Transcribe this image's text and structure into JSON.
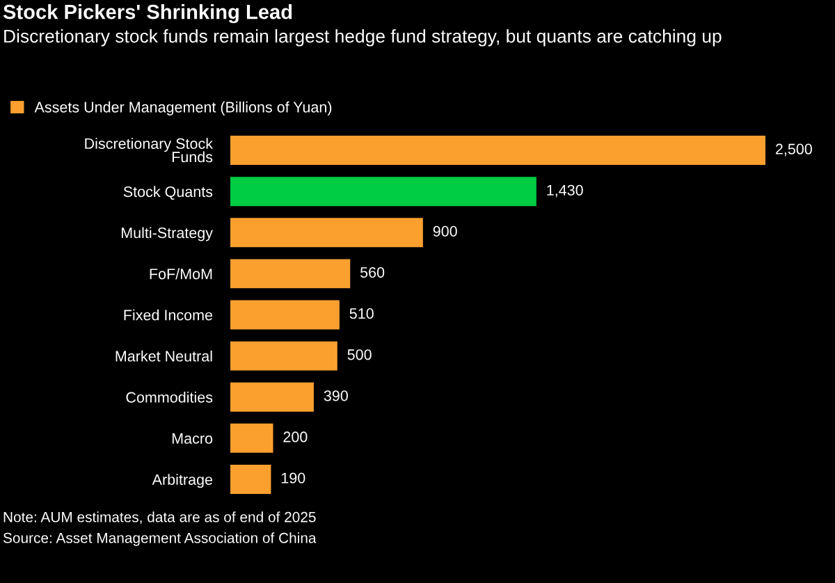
{
  "chart_data": {
    "type": "bar",
    "orientation": "horizontal",
    "title": "Stock Pickers' Shrinking Lead",
    "subtitle": "Discretionary stock funds remain largest hedge fund strategy, but quants are catching up",
    "categories": [
      "Discretionary Stock\nFunds",
      "Stock Quants",
      "Multi-Strategy",
      "FoF/MoM",
      "Fixed Income",
      "Market Neutral",
      "Commodities",
      "Macro",
      "Arbitrage"
    ],
    "series": [
      {
        "name": "Assets Under Management (Billions of Yuan)",
        "color": "#fba02f",
        "values": [
          2500,
          1430,
          900,
          560,
          510,
          500,
          390,
          200,
          190
        ],
        "colors": [
          "#fba02f",
          "#00cc44",
          "#fba02f",
          "#fba02f",
          "#fba02f",
          "#fba02f",
          "#fba02f",
          "#fba02f",
          "#fba02f"
        ],
        "value_labels": [
          "2,500",
          "1,430",
          "900",
          "560",
          "510",
          "500",
          "390",
          "200",
          "190"
        ]
      }
    ],
    "legend": "top left",
    "grid": false,
    "annotations": [
      "Note: AUM estimates, data are as of end of 2025",
      "Source: Asset Management Association of China"
    ]
  }
}
